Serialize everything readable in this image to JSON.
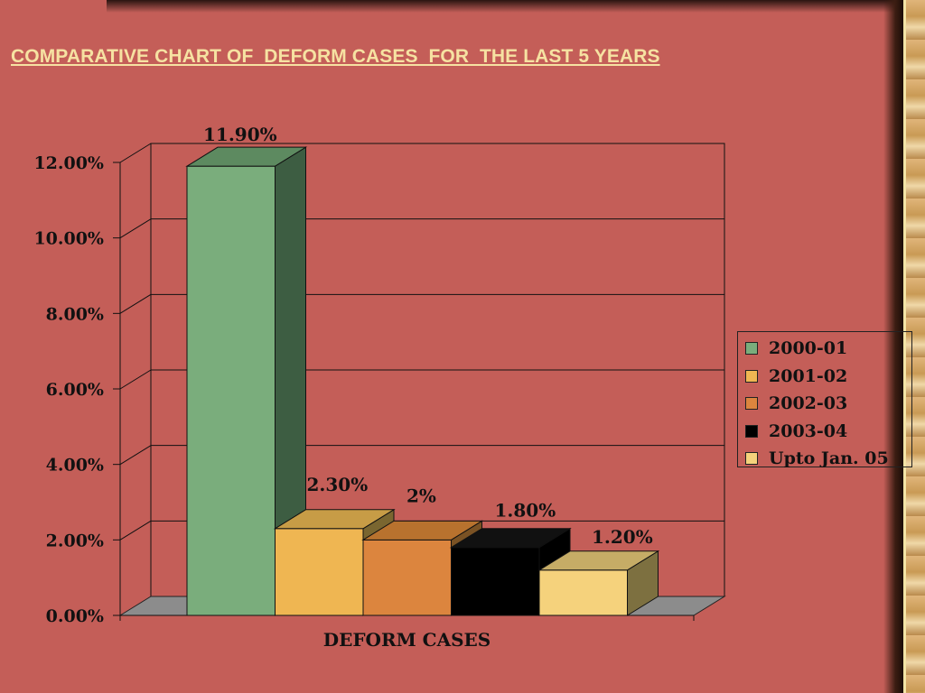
{
  "title": "COMPARATIVE CHART OF  DEFORM CASES  FOR  THE LAST 5 YEARS",
  "colors": {
    "background": "#c45e58",
    "title": "#f6e2a2",
    "floor": "#8c8c8c"
  },
  "chart_data": {
    "type": "bar",
    "categories": [
      "DEFORM CASES"
    ],
    "xlabel": "DEFORM CASES",
    "ylabel": "",
    "ylim": [
      0,
      12
    ],
    "yticks": [
      "0.00%",
      "2.00%",
      "4.00%",
      "6.00%",
      "8.00%",
      "10.00%",
      "12.00%"
    ],
    "grid": true,
    "legend_position": "right",
    "series": [
      {
        "name": "2000-01",
        "values": [
          11.9
        ],
        "label": "11.90%",
        "color": "#7aad7c",
        "side": "#3d5d42",
        "top": "#5d8a60"
      },
      {
        "name": "2001-02",
        "values": [
          2.3
        ],
        "label": "2.30%",
        "color": "#efb652",
        "side": "#7a6630",
        "top": "#c79c46"
      },
      {
        "name": "2002-03",
        "values": [
          2.0
        ],
        "label": "2%",
        "color": "#dc853e",
        "side": "#7a5224",
        "top": "#b8722e"
      },
      {
        "name": "2003-04",
        "values": [
          1.8
        ],
        "label": "1.80%",
        "color": "#000000",
        "side": "#000000",
        "top": "#111111"
      },
      {
        "name": "Upto Jan. 05",
        "values": [
          1.2
        ],
        "label": "1.20%",
        "color": "#f5d27c",
        "side": "#7d7040",
        "top": "#c6ac66"
      }
    ]
  }
}
